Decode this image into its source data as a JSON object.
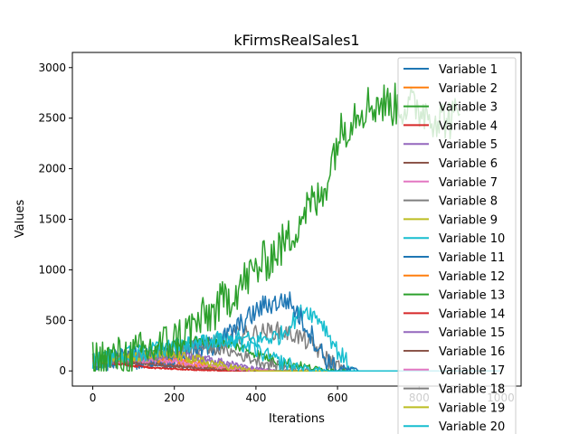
{
  "chart_data": {
    "type": "line",
    "title": "kFirmsRealSales1",
    "xlabel": "Iterations",
    "ylabel": "Values",
    "xlim": [
      -50,
      1050
    ],
    "ylim": [
      -150,
      3150
    ],
    "xticks": [
      0,
      200,
      400,
      600,
      800,
      1000
    ],
    "yticks": [
      0,
      500,
      1000,
      1500,
      2000,
      2500,
      3000
    ],
    "legend_position": "upper-right",
    "grid": false,
    "series": [
      {
        "name": "Variable 1",
        "color": "#1f77b4",
        "anchors": [
          [
            0,
            100
          ],
          [
            80,
            90
          ],
          [
            150,
            60
          ],
          [
            220,
            40
          ],
          [
            300,
            20
          ],
          [
            400,
            5
          ],
          [
            500,
            0
          ],
          [
            1000,
            0
          ]
        ],
        "noise": 20
      },
      {
        "name": "Variable 2",
        "color": "#ff7f0e",
        "anchors": [
          [
            0,
            100
          ],
          [
            100,
            90
          ],
          [
            200,
            70
          ],
          [
            280,
            40
          ],
          [
            350,
            15
          ],
          [
            450,
            0
          ],
          [
            1000,
            0
          ]
        ],
        "noise": 20
      },
      {
        "name": "Variable 3",
        "color": "#2ca02c",
        "anchors": [
          [
            0,
            100
          ],
          [
            100,
            150
          ],
          [
            200,
            300
          ],
          [
            300,
            600
          ],
          [
            400,
            1000
          ],
          [
            480,
            1300
          ],
          [
            520,
            1600
          ],
          [
            560,
            1700
          ],
          [
            600,
            2300
          ],
          [
            650,
            2600
          ],
          [
            700,
            2650
          ],
          [
            800,
            2600
          ],
          [
            850,
            2500
          ],
          [
            900,
            2500
          ]
        ],
        "noise": 220
      },
      {
        "name": "Variable 4",
        "color": "#d62728",
        "anchors": [
          [
            0,
            100
          ],
          [
            60,
            70
          ],
          [
            120,
            40
          ],
          [
            200,
            20
          ],
          [
            300,
            5
          ],
          [
            400,
            0
          ],
          [
            1000,
            0
          ]
        ],
        "noise": 15
      },
      {
        "name": "Variable 5",
        "color": "#9467bd",
        "anchors": [
          [
            0,
            100
          ],
          [
            100,
            120
          ],
          [
            200,
            150
          ],
          [
            270,
            120
          ],
          [
            330,
            60
          ],
          [
            420,
            10
          ],
          [
            500,
            0
          ],
          [
            1000,
            0
          ]
        ],
        "noise": 40
      },
      {
        "name": "Variable 6",
        "color": "#8c564b",
        "anchors": [
          [
            0,
            100
          ],
          [
            80,
            90
          ],
          [
            160,
            60
          ],
          [
            240,
            30
          ],
          [
            320,
            10
          ],
          [
            400,
            0
          ],
          [
            1000,
            0
          ]
        ],
        "noise": 15
      },
      {
        "name": "Variable 7",
        "color": "#e377c2",
        "anchors": [
          [
            0,
            100
          ],
          [
            100,
            90
          ],
          [
            200,
            70
          ],
          [
            300,
            30
          ],
          [
            380,
            10
          ],
          [
            450,
            0
          ],
          [
            1000,
            0
          ]
        ],
        "noise": 20
      },
      {
        "name": "Variable 8",
        "color": "#7f7f7f",
        "anchors": [
          [
            0,
            100
          ],
          [
            150,
            140
          ],
          [
            250,
            200
          ],
          [
            350,
            350
          ],
          [
            450,
            400
          ],
          [
            500,
            350
          ],
          [
            540,
            250
          ],
          [
            580,
            100
          ],
          [
            620,
            0
          ],
          [
            1000,
            0
          ]
        ],
        "noise": 90
      },
      {
        "name": "Variable 9",
        "color": "#bcbd22",
        "anchors": [
          [
            0,
            100
          ],
          [
            100,
            110
          ],
          [
            200,
            120
          ],
          [
            260,
            80
          ],
          [
            320,
            30
          ],
          [
            400,
            0
          ],
          [
            1000,
            0
          ]
        ],
        "noise": 40
      },
      {
        "name": "Variable 10",
        "color": "#17becf",
        "anchors": [
          [
            0,
            100
          ],
          [
            150,
            200
          ],
          [
            250,
            250
          ],
          [
            330,
            320
          ],
          [
            400,
            300
          ],
          [
            460,
            350
          ],
          [
            520,
            620
          ],
          [
            560,
            500
          ],
          [
            600,
            200
          ],
          [
            640,
            0
          ],
          [
            1000,
            0
          ]
        ],
        "noise": 90
      },
      {
        "name": "Variable 11",
        "color": "#1f77b4",
        "anchors": [
          [
            0,
            100
          ],
          [
            200,
            150
          ],
          [
            300,
            250
          ],
          [
            360,
            450
          ],
          [
            420,
            650
          ],
          [
            480,
            700
          ],
          [
            530,
            400
          ],
          [
            570,
            120
          ],
          [
            600,
            20
          ],
          [
            650,
            0
          ],
          [
            1000,
            0
          ]
        ],
        "noise": 110
      },
      {
        "name": "Variable 12",
        "color": "#ff7f0e",
        "anchors": [
          [
            0,
            100
          ],
          [
            100,
            120
          ],
          [
            200,
            100
          ],
          [
            280,
            50
          ],
          [
            350,
            10
          ],
          [
            420,
            0
          ],
          [
            1000,
            0
          ]
        ],
        "noise": 30
      },
      {
        "name": "Variable 13",
        "color": "#2ca02c",
        "anchors": [
          [
            0,
            100
          ],
          [
            150,
            200
          ],
          [
            250,
            300
          ],
          [
            350,
            250
          ],
          [
            450,
            100
          ],
          [
            550,
            20
          ],
          [
            620,
            0
          ],
          [
            1000,
            0
          ]
        ],
        "noise": 50
      },
      {
        "name": "Variable 14",
        "color": "#d62728",
        "anchors": [
          [
            0,
            100
          ],
          [
            80,
            60
          ],
          [
            150,
            30
          ],
          [
            250,
            10
          ],
          [
            350,
            0
          ],
          [
            1000,
            0
          ]
        ],
        "noise": 15
      },
      {
        "name": "Variable 15",
        "color": "#9467bd",
        "anchors": [
          [
            0,
            100
          ],
          [
            120,
            130
          ],
          [
            220,
            160
          ],
          [
            300,
            100
          ],
          [
            380,
            30
          ],
          [
            450,
            0
          ],
          [
            1000,
            0
          ]
        ],
        "noise": 40
      },
      {
        "name": "Variable 16",
        "color": "#8c564b",
        "anchors": [
          [
            0,
            100
          ],
          [
            100,
            80
          ],
          [
            200,
            50
          ],
          [
            300,
            20
          ],
          [
            400,
            0
          ],
          [
            1000,
            0
          ]
        ],
        "noise": 20
      },
      {
        "name": "Variable 17",
        "color": "#e377c2",
        "anchors": [
          [
            0,
            100
          ],
          [
            120,
            110
          ],
          [
            220,
            90
          ],
          [
            300,
            40
          ],
          [
            380,
            10
          ],
          [
            450,
            0
          ],
          [
            1000,
            0
          ]
        ],
        "noise": 30
      },
      {
        "name": "Variable 18",
        "color": "#7f7f7f",
        "anchors": [
          [
            0,
            100
          ],
          [
            150,
            150
          ],
          [
            250,
            250
          ],
          [
            330,
            200
          ],
          [
            420,
            80
          ],
          [
            500,
            10
          ],
          [
            560,
            0
          ],
          [
            1000,
            0
          ]
        ],
        "noise": 60
      },
      {
        "name": "Variable 19",
        "color": "#bcbd22",
        "anchors": [
          [
            0,
            100
          ],
          [
            100,
            130
          ],
          [
            180,
            160
          ],
          [
            250,
            120
          ],
          [
            320,
            50
          ],
          [
            400,
            0
          ],
          [
            1000,
            0
          ]
        ],
        "noise": 50
      },
      {
        "name": "Variable 20",
        "color": "#17becf",
        "anchors": [
          [
            0,
            100
          ],
          [
            100,
            150
          ],
          [
            200,
            250
          ],
          [
            300,
            300
          ],
          [
            380,
            250
          ],
          [
            450,
            100
          ],
          [
            520,
            20
          ],
          [
            580,
            0
          ],
          [
            1000,
            0
          ]
        ],
        "noise": 80
      }
    ]
  }
}
